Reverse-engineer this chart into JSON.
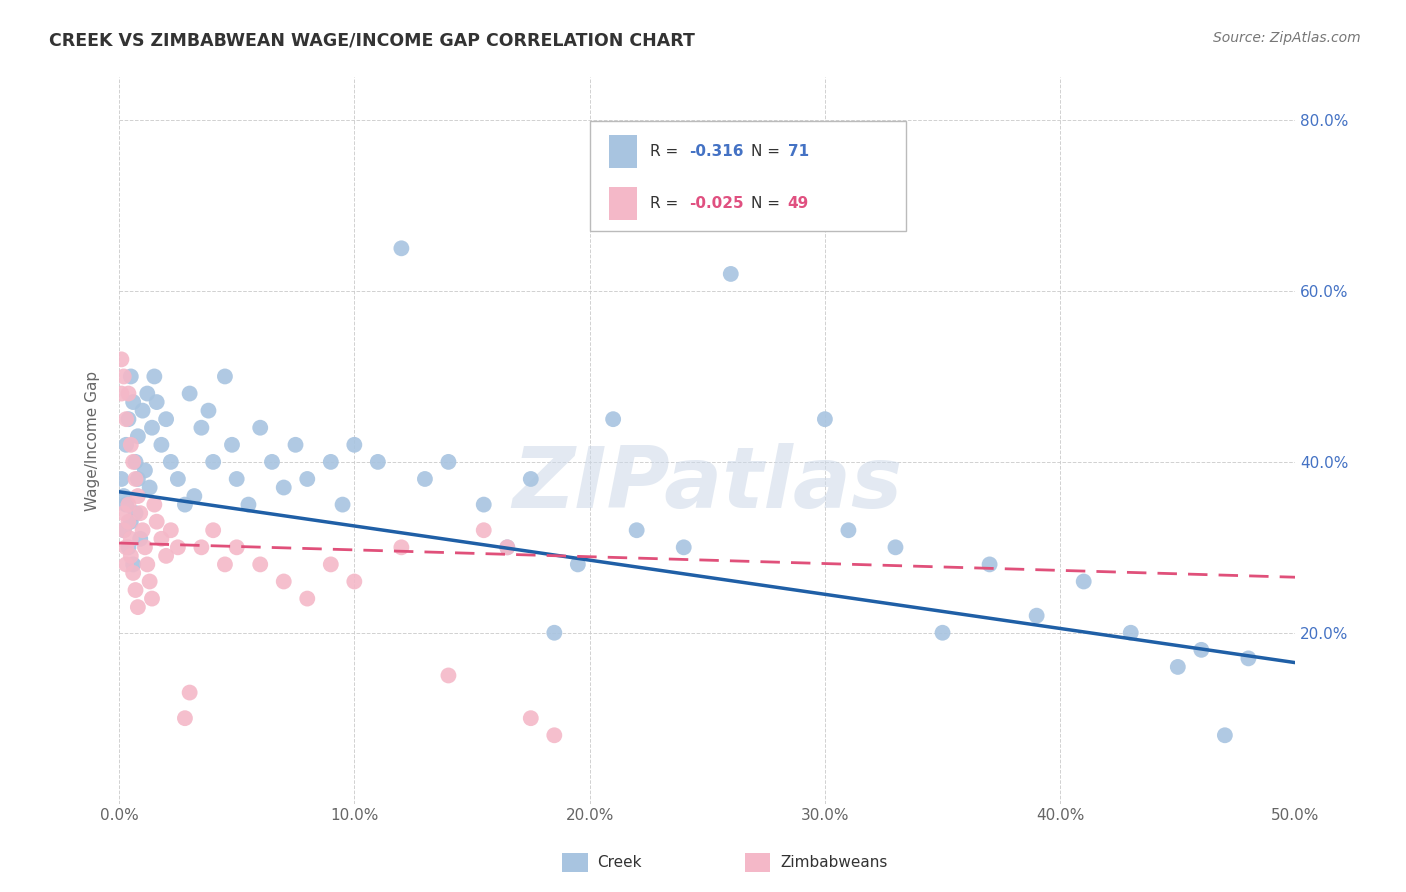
{
  "title": "CREEK VS ZIMBABWEAN WAGE/INCOME GAP CORRELATION CHART",
  "source": "Source: ZipAtlas.com",
  "ylabel": "Wage/Income Gap",
  "xlim": [
    0.0,
    0.5
  ],
  "ylim": [
    0.0,
    0.85
  ],
  "xticks": [
    0.0,
    0.1,
    0.2,
    0.3,
    0.4,
    0.5
  ],
  "yticks": [
    0.0,
    0.2,
    0.4,
    0.6,
    0.8
  ],
  "xtick_labels": [
    "0.0%",
    "10.0%",
    "20.0%",
    "30.0%",
    "40.0%",
    "50.0%"
  ],
  "ytick_labels": [
    "",
    "20.0%",
    "40.0%",
    "60.0%",
    "80.0%"
  ],
  "watermark": "ZIPatlas",
  "creek_R": "-0.316",
  "creek_N": "71",
  "zimb_R": "-0.025",
  "zimb_N": "49",
  "creek_color": "#a8c4e0",
  "creek_line_color": "#1f5fa6",
  "zimb_color": "#f4b8c8",
  "zimb_line_color": "#e0507a",
  "creek_x": [
    0.001,
    0.002,
    0.002,
    0.003,
    0.003,
    0.004,
    0.004,
    0.005,
    0.005,
    0.006,
    0.006,
    0.007,
    0.007,
    0.008,
    0.008,
    0.009,
    0.01,
    0.011,
    0.012,
    0.013,
    0.014,
    0.015,
    0.016,
    0.018,
    0.02,
    0.022,
    0.025,
    0.028,
    0.03,
    0.032,
    0.035,
    0.038,
    0.04,
    0.045,
    0.048,
    0.05,
    0.055,
    0.06,
    0.065,
    0.07,
    0.075,
    0.08,
    0.09,
    0.095,
    0.1,
    0.11,
    0.12,
    0.13,
    0.14,
    0.155,
    0.165,
    0.175,
    0.185,
    0.195,
    0.21,
    0.22,
    0.24,
    0.26,
    0.28,
    0.3,
    0.31,
    0.33,
    0.35,
    0.37,
    0.39,
    0.41,
    0.43,
    0.45,
    0.46,
    0.47,
    0.48
  ],
  "creek_y": [
    0.38,
    0.32,
    0.36,
    0.42,
    0.35,
    0.3,
    0.45,
    0.5,
    0.33,
    0.47,
    0.28,
    0.34,
    0.4,
    0.38,
    0.43,
    0.31,
    0.46,
    0.39,
    0.48,
    0.37,
    0.44,
    0.5,
    0.47,
    0.42,
    0.45,
    0.4,
    0.38,
    0.35,
    0.48,
    0.36,
    0.44,
    0.46,
    0.4,
    0.5,
    0.42,
    0.38,
    0.35,
    0.44,
    0.4,
    0.37,
    0.42,
    0.38,
    0.4,
    0.35,
    0.42,
    0.4,
    0.65,
    0.38,
    0.4,
    0.35,
    0.3,
    0.38,
    0.2,
    0.28,
    0.45,
    0.32,
    0.3,
    0.62,
    0.68,
    0.45,
    0.32,
    0.3,
    0.2,
    0.28,
    0.22,
    0.26,
    0.2,
    0.16,
    0.18,
    0.08,
    0.17
  ],
  "zimb_x": [
    0.001,
    0.001,
    0.002,
    0.002,
    0.002,
    0.003,
    0.003,
    0.003,
    0.004,
    0.004,
    0.004,
    0.005,
    0.005,
    0.005,
    0.006,
    0.006,
    0.007,
    0.007,
    0.008,
    0.008,
    0.009,
    0.01,
    0.011,
    0.012,
    0.013,
    0.014,
    0.015,
    0.016,
    0.018,
    0.02,
    0.022,
    0.025,
    0.028,
    0.03,
    0.035,
    0.04,
    0.045,
    0.05,
    0.06,
    0.07,
    0.08,
    0.09,
    0.1,
    0.12,
    0.14,
    0.155,
    0.165,
    0.175,
    0.185
  ],
  "zimb_y": [
    0.52,
    0.48,
    0.34,
    0.5,
    0.32,
    0.45,
    0.3,
    0.28,
    0.48,
    0.35,
    0.33,
    0.42,
    0.29,
    0.31,
    0.4,
    0.27,
    0.38,
    0.25,
    0.36,
    0.23,
    0.34,
    0.32,
    0.3,
    0.28,
    0.26,
    0.24,
    0.35,
    0.33,
    0.31,
    0.29,
    0.32,
    0.3,
    0.1,
    0.13,
    0.3,
    0.32,
    0.28,
    0.3,
    0.28,
    0.26,
    0.24,
    0.28,
    0.26,
    0.3,
    0.15,
    0.32,
    0.3,
    0.1,
    0.08
  ]
}
